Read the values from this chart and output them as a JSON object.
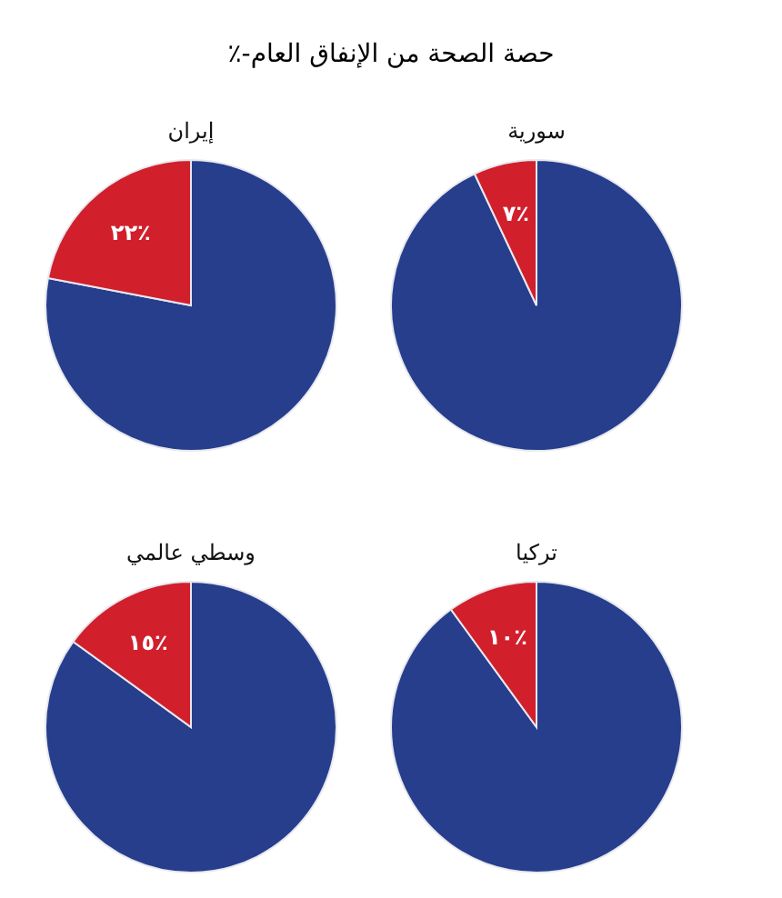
{
  "chart_data": [
    {
      "type": "other",
      "title": "حصة الصحة من الإنفاق العام-٪"
    },
    {
      "type": "pie",
      "title": "سورية",
      "categories": [
        null,
        null
      ],
      "values": [
        93,
        7
      ],
      "colors": [
        "#263e8c",
        "#d21f2c"
      ],
      "value_labels": [
        null,
        "٧٪"
      ]
    },
    {
      "type": "pie",
      "title": "إيران",
      "categories": [
        null,
        null
      ],
      "values": [
        78,
        22
      ],
      "colors": [
        "#263e8c",
        "#d21f2c"
      ],
      "value_labels": [
        null,
        "٢٢٪"
      ]
    },
    {
      "type": "pie",
      "title": "تركيا",
      "categories": [
        null,
        null
      ],
      "values": [
        90,
        10
      ],
      "colors": [
        "#263e8c",
        "#d21f2c"
      ],
      "value_labels": [
        null,
        "١٠٪"
      ]
    },
    {
      "type": "pie",
      "title": "وسطي عالمي",
      "categories": [
        null,
        null
      ],
      "values": [
        85,
        15
      ],
      "colors": [
        "#263e8c",
        "#d21f2c"
      ],
      "value_labels": [
        null,
        "١٥٪"
      ]
    }
  ]
}
